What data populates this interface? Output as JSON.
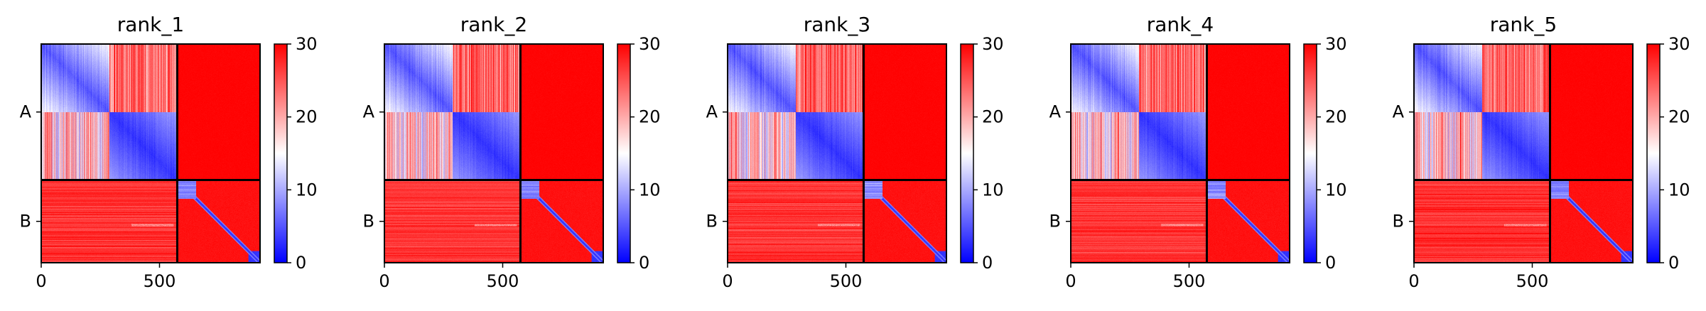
{
  "chart_data": [
    {
      "type": "heatmap",
      "title": "rank_1",
      "x_ticks": [
        0,
        500
      ],
      "y_tick_labels": [
        "A",
        "B"
      ],
      "chain_lengths": {
        "A": 575,
        "B": 350
      },
      "chain_a_domain_split": 288,
      "matrix_size": 925,
      "colorbar": {
        "min": 0,
        "max": 30,
        "ticks": [
          0,
          10,
          20,
          30
        ]
      },
      "colormap": [
        "#0000ff",
        "#ffffff",
        "#ff0000"
      ],
      "grid": false
    },
    {
      "type": "heatmap",
      "title": "rank_2",
      "x_ticks": [
        0,
        500
      ],
      "y_tick_labels": [
        "A",
        "B"
      ],
      "chain_lengths": {
        "A": 575,
        "B": 350
      },
      "chain_a_domain_split": 288,
      "matrix_size": 925,
      "colorbar": {
        "min": 0,
        "max": 30,
        "ticks": [
          0,
          10,
          20,
          30
        ]
      },
      "colormap": [
        "#0000ff",
        "#ffffff",
        "#ff0000"
      ],
      "grid": false
    },
    {
      "type": "heatmap",
      "title": "rank_3",
      "x_ticks": [
        0,
        500
      ],
      "y_tick_labels": [
        "A",
        "B"
      ],
      "chain_lengths": {
        "A": 575,
        "B": 350
      },
      "chain_a_domain_split": 288,
      "matrix_size": 925,
      "colorbar": {
        "min": 0,
        "max": 30,
        "ticks": [
          0,
          10,
          20,
          30
        ]
      },
      "colormap": [
        "#0000ff",
        "#ffffff",
        "#ff0000"
      ],
      "grid": false
    },
    {
      "type": "heatmap",
      "title": "rank_4",
      "x_ticks": [
        0,
        500
      ],
      "y_tick_labels": [
        "A",
        "B"
      ],
      "chain_lengths": {
        "A": 575,
        "B": 350
      },
      "chain_a_domain_split": 288,
      "matrix_size": 925,
      "colorbar": {
        "min": 0,
        "max": 30,
        "ticks": [
          0,
          10,
          20,
          30
        ]
      },
      "colormap": [
        "#0000ff",
        "#ffffff",
        "#ff0000"
      ],
      "grid": false
    },
    {
      "type": "heatmap",
      "title": "rank_5",
      "x_ticks": [
        0,
        500
      ],
      "y_tick_labels": [
        "A",
        "B"
      ],
      "chain_lengths": {
        "A": 575,
        "B": 350
      },
      "chain_a_domain_split": 288,
      "matrix_size": 925,
      "colorbar": {
        "min": 0,
        "max": 30,
        "ticks": [
          0,
          10,
          20,
          30
        ]
      },
      "colormap": [
        "#0000ff",
        "#ffffff",
        "#ff0000"
      ],
      "grid": false
    }
  ]
}
